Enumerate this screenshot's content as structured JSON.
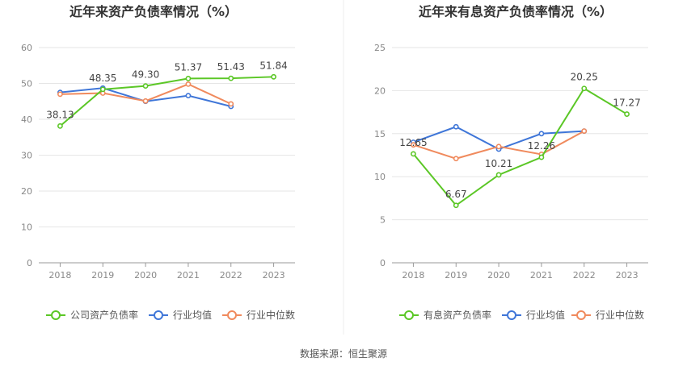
{
  "source_text": "数据来源：恒生聚源",
  "chart_data": [
    {
      "type": "line",
      "title": "近年来资产负债率情况（%）",
      "categories": [
        "2018",
        "2019",
        "2020",
        "2021",
        "2022",
        "2023"
      ],
      "ylim": [
        0,
        60
      ],
      "yticks": [
        0,
        10,
        20,
        30,
        40,
        50,
        60
      ],
      "grid": true,
      "legend_position": "bottom",
      "series": [
        {
          "name": "公司资产负债率",
          "color": "#5bc726",
          "values": [
            38.13,
            48.35,
            49.3,
            51.37,
            51.43,
            51.84
          ],
          "labels": [
            "38.13",
            "48.35",
            "49.30",
            "51.37",
            "51.43",
            "51.84"
          ]
        },
        {
          "name": "行业均值",
          "color": "#3f76d8",
          "values": [
            47.5,
            48.7,
            45.0,
            46.6,
            43.6,
            null
          ]
        },
        {
          "name": "行业中位数",
          "color": "#f08a5d",
          "values": [
            47.0,
            47.3,
            45.1,
            49.8,
            44.3,
            null
          ]
        }
      ]
    },
    {
      "type": "line",
      "title": "近年来有息资产负债率情况（%）",
      "categories": [
        "2018",
        "2019",
        "2020",
        "2021",
        "2022",
        "2023"
      ],
      "ylim": [
        0,
        25
      ],
      "yticks": [
        0,
        5,
        10,
        15,
        20,
        25
      ],
      "grid": true,
      "legend_position": "bottom",
      "series": [
        {
          "name": "有息资产负债率",
          "color": "#5bc726",
          "values": [
            12.65,
            6.67,
            10.21,
            12.26,
            20.25,
            17.27
          ],
          "labels": [
            "12.65",
            "6.67",
            "10.21",
            "12.26",
            "20.25",
            "17.27"
          ]
        },
        {
          "name": "行业均值",
          "color": "#3f76d8",
          "values": [
            14.0,
            15.8,
            13.2,
            15.0,
            15.3,
            null
          ]
        },
        {
          "name": "行业中位数",
          "color": "#f08a5d",
          "values": [
            13.7,
            12.1,
            13.5,
            12.6,
            15.3,
            null
          ]
        }
      ]
    }
  ]
}
